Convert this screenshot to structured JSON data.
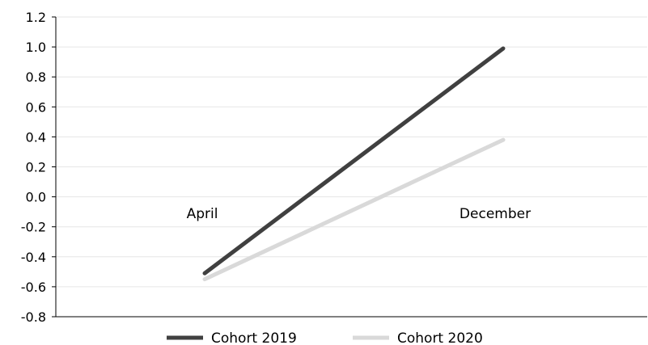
{
  "chart_data": {
    "type": "line",
    "categories": [
      "April",
      "December"
    ],
    "series": [
      {
        "name": "Cohort 2019",
        "values": [
          -0.51,
          0.99
        ],
        "color": "#404040"
      },
      {
        "name": "Cohort 2020",
        "values": [
          -0.55,
          0.38
        ],
        "color": "#d9d9d9"
      }
    ],
    "ylim": [
      -0.8,
      1.2
    ],
    "yticks": [
      "1.2",
      "1.0",
      "0.8",
      "0.6",
      "0.4",
      "0.2",
      "0.0",
      "-0.2",
      "-0.4",
      "-0.6",
      "-0.8"
    ],
    "grid": true,
    "gridline_color": "#e6e6e6",
    "legend": "bottom",
    "title": "",
    "xlabel": "",
    "ylabel": ""
  }
}
